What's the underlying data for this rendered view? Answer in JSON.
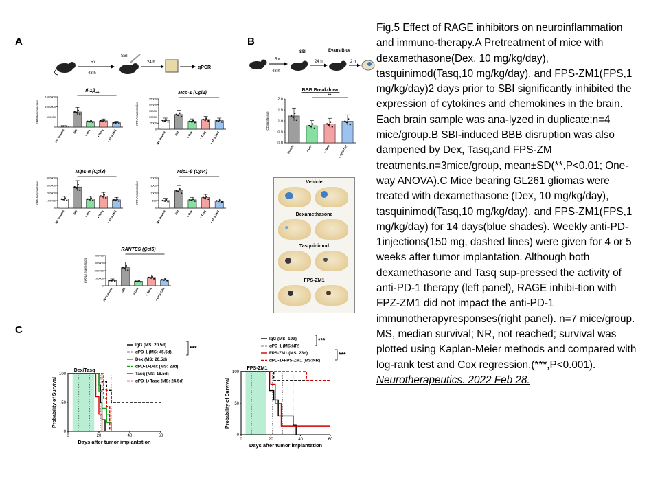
{
  "panels": {
    "A": {
      "letter": "A",
      "schematic": {
        "rx": "Rx",
        "rx_time": "48 h",
        "sbi": "SBI",
        "time2": "24 h",
        "end": "qPCR"
      },
      "subcharts": [
        {
          "title": "Il-1β",
          "ylabel": "mRNA expression",
          "sig": "***",
          "chart_data": {
            "type": "bar",
            "categories": [
              "No Trauma",
              "SBI",
              "+ Dex",
              "+ Tasq",
              "+ FPS-ZM1"
            ],
            "values": [
              50000,
              750000,
              280000,
              310000,
              220000
            ],
            "ylim": [
              0,
              1500000
            ],
            "ytick_labels": [
              "0",
              "500000",
              "1000000",
              "1500000"
            ]
          }
        },
        {
          "title": "Mcp-1 (Ccl2)",
          "ylabel": "mRNA expression",
          "sig": "*",
          "chart_data": {
            "type": "bar",
            "categories": [
              "No Trauma",
              "SBI",
              "+ Dex",
              "+ Tasq",
              "+ FPS-ZM1"
            ],
            "values": [
              7000,
              12000,
              6500,
              8000,
              7000
            ],
            "ylim": [
              0,
              25000
            ],
            "ytick_labels": [
              "0",
              "5000",
              "10000",
              "15000",
              "20000",
              "25000"
            ]
          }
        },
        {
          "title": "Mip1-α (Ccl3)",
          "ylabel": "mRNA expression",
          "sig": "*",
          "chart_data": {
            "type": "bar",
            "categories": [
              "No Trauma",
              "SBI",
              "+ Dex",
              "+ Tasq",
              "+ FPS-ZM1"
            ],
            "values": [
              120000,
              280000,
              120000,
              160000,
              110000
            ],
            "ylim": [
              0,
              400000
            ],
            "ytick_labels": [
              "0",
              "100000",
              "200000",
              "300000",
              "400000"
            ]
          }
        },
        {
          "title": "Mip1-β (Ccl4)",
          "ylabel": "mRNA expression",
          "sig": "*",
          "chart_data": {
            "type": "bar",
            "categories": [
              "No Trauma",
              "SBI",
              "+ Dex",
              "+ Tasq",
              "+ FPS-ZM1"
            ],
            "values": [
              500,
              1150,
              550,
              700,
              480
            ],
            "ylim": [
              0,
              2000
            ],
            "ytick_labels": [
              "0",
              "500",
              "1000",
              "1500",
              "2000"
            ]
          }
        },
        {
          "title": "RANTES (Ccl5)",
          "ylabel": "mRNA expression",
          "sig": "**",
          "chart_data": {
            "type": "bar",
            "categories": [
              "No Trauma",
              "SBI",
              "+ Dex",
              "+ Tasq",
              "+ FPS-ZM1"
            ],
            "values": [
              70000,
              240000,
              60000,
              110000,
              80000
            ],
            "ylim": [
              0,
              400000
            ],
            "ytick_labels": [
              "0",
              "100000",
              "200000",
              "300000",
              "400000"
            ]
          }
        }
      ]
    },
    "B": {
      "letter": "B",
      "schematic": {
        "rx": "Rx",
        "rx_time": "48 h",
        "sbi": "SBI",
        "time2": "24 h",
        "evans": "Evans Blue",
        "time3": "2 h"
      },
      "bbb": {
        "title": "BBB Breakdown",
        "ylabel": "OD/mg tissue",
        "sig": "**",
        "chart_data": {
          "type": "bar",
          "categories": [
            "Vehicle",
            "+ Dex",
            "+ Tasq",
            "+ FPS-ZM1"
          ],
          "values": [
            1.22,
            0.78,
            0.86,
            0.98
          ],
          "ylim": [
            0,
            2.0
          ],
          "ytick_labels": [
            "0.0",
            "0.5",
            "1.0",
            "1.5",
            "2.0"
          ]
        }
      },
      "brain_labels": [
        "Vehicle",
        "Dexamethasone",
        "Tasquinimod",
        "FPS-ZM1"
      ]
    },
    "C": {
      "letter": "C",
      "left": {
        "shade_label": "Dex/Tasq",
        "ylabel": "Probability of Survival",
        "xlabel": "Days after tumor implantation",
        "legend": [
          "IgG (MS: 20.5d)",
          "αPD-1 (MS: 45.5d)",
          "Dex (MS: 20.5d)",
          "αPD-1+Dex (MS: 23d)",
          "Tasq (MS: 18.5d)",
          "αPD-1+Tasq (MS: 24.5d)"
        ],
        "sig": "***",
        "chart_data": {
          "type": "line",
          "xlim": [
            0,
            60
          ],
          "ylim": [
            0,
            100
          ],
          "xtick_labels": [
            "0",
            "20",
            "40",
            "60"
          ],
          "ytick_labels": [
            "0",
            "50",
            "100"
          ],
          "series": [
            {
              "name": "IgG (MS: 20.5d)",
              "x": [
                0,
                18,
                20,
                21,
                22,
                24
              ],
              "y": [
                100,
                100,
                80,
                50,
                20,
                0
              ]
            },
            {
              "name": "αPD-1 (MS: 45.5d)",
              "x": [
                0,
                20,
                22,
                25,
                28,
                60
              ],
              "y": [
                100,
                100,
                86,
                71,
                50,
                50
              ]
            },
            {
              "name": "Dex (MS: 20.5d)",
              "x": [
                0,
                17,
                20,
                22,
                25,
                28
              ],
              "y": [
                100,
                100,
                70,
                40,
                15,
                0
              ]
            },
            {
              "name": "αPD-1+Dex (MS: 23d)",
              "x": [
                0,
                20,
                23,
                25,
                27
              ],
              "y": [
                100,
                100,
                57,
                30,
                0
              ]
            },
            {
              "name": "Tasq (MS: 18.5d)",
              "x": [
                0,
                16,
                18,
                20,
                22
              ],
              "y": [
                100,
                100,
                60,
                30,
                0
              ]
            },
            {
              "name": "αPD-1+Tasq (MS: 24.5d)",
              "x": [
                0,
                19,
                22,
                25,
                27
              ],
              "y": [
                100,
                100,
                72,
                43,
                0
              ]
            }
          ]
        }
      },
      "right": {
        "shade_label": "FPS-ZM1",
        "ylabel": "Probability of Survival",
        "xlabel": "Days after tumor implantation",
        "legend": [
          "IgG (MS: 19d)",
          "αPD-1 (MS:NR)",
          "FPS-ZM1 (MS: 23d)",
          "αPD-1+FPS-ZM1 (MS:NR)"
        ],
        "sig1": "***",
        "sig2": "***",
        "chart_data": {
          "type": "line",
          "xlim": [
            0,
            60
          ],
          "ylim": [
            0,
            100
          ],
          "xtick_labels": [
            "0",
            "20",
            "40",
            "60"
          ],
          "ytick_labels": [
            "0",
            "50",
            "100"
          ],
          "series": [
            {
              "name": "IgG (MS: 19d)",
              "x": [
                0,
                17,
                19,
                22,
                25,
                35,
                37
              ],
              "y": [
                100,
                100,
                70,
                55,
                30,
                15,
                0
              ]
            },
            {
              "name": "αPD-1 (MS:NR)",
              "x": [
                0,
                20,
                22,
                60
              ],
              "y": [
                100,
                100,
                86,
                86
              ]
            },
            {
              "name": "FPS-ZM1 (MS: 23d)",
              "x": [
                0,
                18,
                20,
                23,
                27,
                40,
                60
              ],
              "y": [
                100,
                100,
                80,
                50,
                14,
                14,
                14
              ]
            },
            {
              "name": "αPD-1+FPS-ZM1 (MS:NR)",
              "x": [
                0,
                22,
                40,
                44,
                60
              ],
              "y": [
                100,
                100,
                100,
                86,
                86
              ]
            }
          ]
        }
      }
    }
  },
  "caption": {
    "text": "Fig.5 Effect of RAGE inhibitors on neuroinflammation and immuno-therapy.A Pretreatment of mice with dexamethasone(Dex, 10 mg/kg/day), tasquinimod(Tasq,10 mg/kg/day), and FPS-ZM1(FPS,1 mg/kg/day)2 days prior to SBI significantly inhibited the expression of cytokines and chemokines in the brain. Each brain sample was ana-lyzed in duplicate;n=4 mice/group.B SBI-induced BBB disruption was also dampened by Dex, Tasq,and FPS-ZM treatments.n=3mice/group, mean±SD(**,P<0.01; One-way ANOVA).C Mice bearing GL261 gliomas were treated with dexamethasone (Dex, 10 mg/kg/day), tasquinimod(Tasq,10 mg/kg/day), and FPS-ZM1(FPS,1 mg/kg/day) for 14 days(blue shades). Weekly anti-PD-1injections(150 mg, dashed lines) were given for 4 or 5 weeks after tumor implantation. Although both dexamethasone and Tasq sup-pressed the activity of anti-PD-1 therapy (left panel), RAGE inhibi-tion with FPZ-ZM1 did not impact the anti-PD-1 immunotherapyresponses(right panel). n=7 mice/group. MS, median survival; NR, not reached; survival was plotted using Kaplan-Meier methods and compared with log-rank test and Cox regression.(***,P<0.001).",
    "citation": "Neurotherapeutics. 2022 Feb 28."
  },
  "colors": {
    "bar_grey": "#9e9e9e",
    "dex": "#86e0a0",
    "tasq": "#f4a3a3",
    "fps": "#9cc3ef",
    "shade": "#a8eacb",
    "red": "#d40000",
    "green": "#19a319"
  }
}
